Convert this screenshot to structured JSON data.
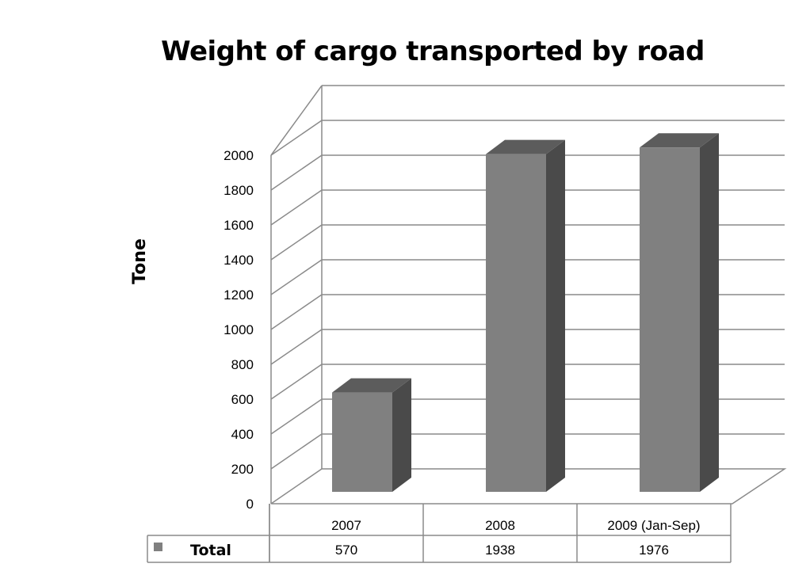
{
  "chart_data": {
    "type": "bar",
    "title": "Weight of cargo transported by road",
    "ylabel": "Tone",
    "xlabel": "",
    "categories": [
      "2007",
      "2008",
      "2009 (Jan-Sep)"
    ],
    "series": [
      {
        "name": "Total",
        "values": [
          570,
          1938,
          1976
        ]
      }
    ],
    "ylim": [
      0,
      2000
    ],
    "yticks": [
      0,
      200,
      400,
      600,
      800,
      1000,
      1200,
      1400,
      1600,
      1800,
      2000
    ],
    "grid": true,
    "data_table": true,
    "three_d": true,
    "colors": {
      "bar_front": "#808080",
      "bar_top": "#5c5c5c",
      "bar_side": "#4a4a4a",
      "grid": "#8a8a8a",
      "legend_key": "#808080"
    }
  }
}
